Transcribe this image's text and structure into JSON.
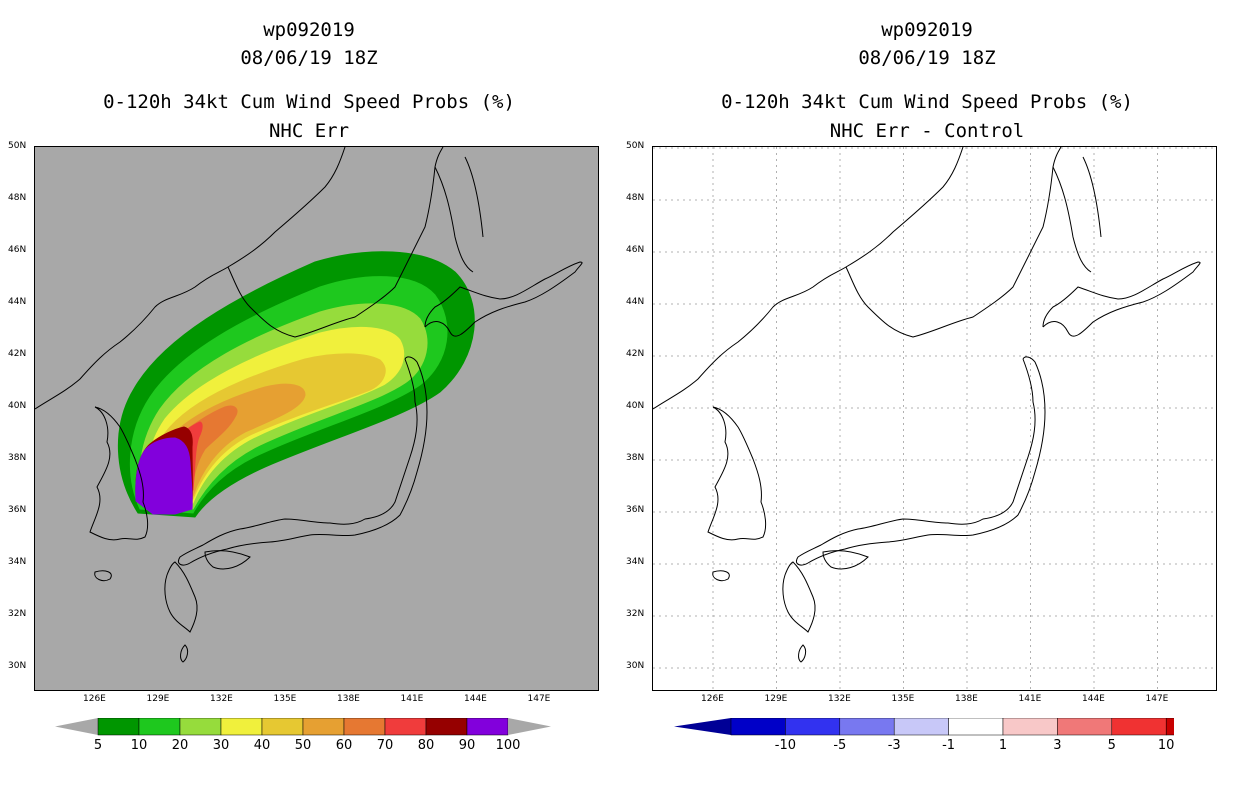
{
  "left_panel": {
    "storm_id": "wp092019",
    "datetime": "08/06/19 18Z",
    "product": "0-120h 34kt Cum Wind Speed Probs (%)",
    "subtitle": "NHC Err",
    "background": "#a8a8a8",
    "colorbar": {
      "colors": [
        "#009600",
        "#1ec81e",
        "#96dc3c",
        "#f0f03c",
        "#e6c832",
        "#e6a032",
        "#e67832",
        "#f03c3c",
        "#960000",
        "#8200dc"
      ],
      "labels": [
        "5",
        "10",
        "20",
        "30",
        "40",
        "50",
        "60",
        "70",
        "80",
        "90",
        "100"
      ]
    }
  },
  "right_panel": {
    "storm_id": "wp092019",
    "datetime": "08/06/19 18Z",
    "product": "0-120h 34kt Cum Wind Speed Probs (%)",
    "subtitle": "NHC Err - Control",
    "background": "#ffffff",
    "colorbar": {
      "colors": [
        "#0000c8",
        "#3232f0",
        "#7878f0",
        "#c8c8f8",
        "#ffffff",
        "#f8c8c8",
        "#f07878",
        "#f03232",
        "#c80000"
      ],
      "end_colors": [
        "#000096",
        "#780000"
      ],
      "labels": [
        "-10",
        "-5",
        "-3",
        "-1",
        "1",
        "3",
        "5",
        "10"
      ]
    }
  },
  "axes": {
    "lat_labels": [
      "50N",
      "48N",
      "46N",
      "44N",
      "42N",
      "40N",
      "38N",
      "36N",
      "34N",
      "32N",
      "30N"
    ],
    "lon_labels": [
      "126E",
      "129E",
      "132E",
      "135E",
      "138E",
      "141E",
      "144E",
      "147E"
    ]
  },
  "probability_levels": [
    5,
    10,
    20,
    30,
    40,
    50,
    60,
    70,
    80,
    90,
    100
  ]
}
